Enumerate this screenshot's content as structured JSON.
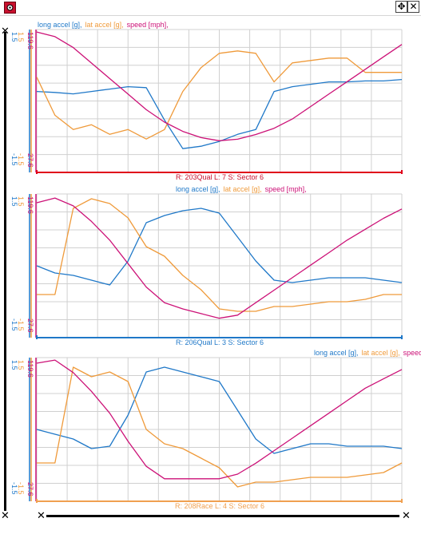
{
  "colors": {
    "long_accel": "#1f78c8",
    "lat_accel": "#ef9a3a",
    "speed": "#cc1177",
    "grid": "#d0d0d0",
    "marker_red": "#e0001a",
    "marker_blue": "#1f78c8",
    "marker_orange": "#f0a050"
  },
  "icons": {
    "app": "gear-icon",
    "move": "move-icon",
    "close": "close-icon"
  },
  "panels": [
    {
      "legend": {
        "long": "long accel [g],",
        "lat": "lat accel [g],",
        "speed": "speed [mph],"
      },
      "run_label": "R: 203Qual  L: 7  S: Sector 6",
      "run_color": "#e0001a",
      "axis_blue_top": "1.5",
      "axis_blue_bot": "-1.5",
      "axis_orange_top": "1.5",
      "axis_orange_bot": "-1.5",
      "axis_speed_top": "119.6",
      "axis_speed_bot": "27.6"
    },
    {
      "legend": {
        "long": "long accel [g],",
        "lat": "lat accel [g],",
        "speed": "speed [mph],"
      },
      "run_label": "R: 206Qual  L: 3  S: Sector 6",
      "run_color": "#1f78c8",
      "axis_blue_top": "1.5",
      "axis_blue_bot": "-1.5",
      "axis_orange_top": "1.5",
      "axis_orange_bot": "-1.5",
      "axis_speed_top": "119.6",
      "axis_speed_bot": "27.6"
    },
    {
      "legend": {
        "long": "long accel [g],",
        "lat": "lat accel [g],",
        "speed": "speed"
      },
      "run_label": "R: 208Race  L: 4  S: Sector 6",
      "run_color": "#f0a050",
      "axis_blue_top": "1.5",
      "axis_blue_bot": "-1.5",
      "axis_orange_top": "1.5",
      "axis_orange_bot": "-1.5",
      "axis_speed_top": "119.6",
      "axis_speed_bot": "27.6"
    }
  ],
  "chart_data": [
    {
      "type": "line",
      "x": [
        0,
        0.05,
        0.1,
        0.15,
        0.2,
        0.25,
        0.3,
        0.35,
        0.4,
        0.45,
        0.5,
        0.55,
        0.6,
        0.65,
        0.7,
        0.75,
        0.8,
        0.85,
        0.9,
        0.95,
        1.0
      ],
      "series": [
        {
          "name": "long accel [g]",
          "values": [
            0.2,
            0.18,
            0.15,
            0.2,
            0.25,
            0.3,
            0.28,
            -0.4,
            -1.0,
            -0.95,
            -0.85,
            -0.7,
            -0.6,
            0.2,
            0.3,
            0.35,
            0.4,
            0.4,
            0.42,
            0.42,
            0.45
          ]
        },
        {
          "name": "lat accel [g]",
          "values": [
            0.5,
            -0.3,
            -0.6,
            -0.5,
            -0.7,
            -0.6,
            -0.8,
            -0.6,
            0.2,
            0.7,
            1.0,
            1.05,
            1.0,
            0.4,
            0.8,
            0.85,
            0.9,
            0.9,
            0.6,
            0.6,
            0.6
          ]
        },
        {
          "name": "speed [mph]",
          "values": [
            118,
            115,
            108,
            98,
            88,
            78,
            68,
            60,
            54,
            50,
            48,
            49,
            52,
            56,
            62,
            70,
            78,
            86,
            94,
            102,
            110
          ]
        }
      ]
    },
    {
      "type": "line",
      "x": [
        0,
        0.05,
        0.1,
        0.15,
        0.2,
        0.25,
        0.3,
        0.35,
        0.4,
        0.45,
        0.5,
        0.55,
        0.6,
        0.65,
        0.7,
        0.75,
        0.8,
        0.85,
        0.9,
        0.95,
        1.0
      ],
      "series": [
        {
          "name": "long accel [g]",
          "values": [
            0.0,
            -0.15,
            -0.2,
            -0.3,
            -0.4,
            0.1,
            0.9,
            1.05,
            1.15,
            1.2,
            1.1,
            0.6,
            0.1,
            -0.3,
            -0.35,
            -0.3,
            -0.25,
            -0.25,
            -0.25,
            -0.3,
            -0.35
          ]
        },
        {
          "name": "lat accel [g]",
          "values": [
            -0.6,
            -0.6,
            1.2,
            1.4,
            1.3,
            1.0,
            0.4,
            0.2,
            -0.2,
            -0.5,
            -0.9,
            -0.95,
            -0.95,
            -0.85,
            -0.85,
            -0.8,
            -0.75,
            -0.75,
            -0.7,
            -0.6,
            -0.6
          ]
        },
        {
          "name": "speed [mph]",
          "values": [
            114,
            117,
            112,
            102,
            90,
            75,
            60,
            50,
            46,
            43,
            40,
            42,
            50,
            58,
            66,
            74,
            82,
            90,
            97,
            104,
            110
          ]
        }
      ]
    },
    {
      "type": "line",
      "x": [
        0,
        0.05,
        0.1,
        0.15,
        0.2,
        0.25,
        0.3,
        0.35,
        0.4,
        0.45,
        0.5,
        0.55,
        0.6,
        0.65,
        0.7,
        0.75,
        0.8,
        0.85,
        0.9,
        0.95,
        1.0
      ],
      "series": [
        {
          "name": "long accel [g]",
          "values": [
            0.0,
            -0.1,
            -0.2,
            -0.4,
            -0.35,
            0.3,
            1.2,
            1.3,
            1.2,
            1.1,
            1.0,
            0.4,
            -0.2,
            -0.5,
            -0.4,
            -0.3,
            -0.3,
            -0.35,
            -0.35,
            -0.35,
            -0.4
          ]
        },
        {
          "name": "lat accel [g]",
          "values": [
            -0.7,
            -0.7,
            1.3,
            1.1,
            1.2,
            1.0,
            0.0,
            -0.3,
            -0.4,
            -0.6,
            -0.8,
            -1.2,
            -1.1,
            -1.1,
            -1.05,
            -1.0,
            -1.0,
            -1.0,
            -0.95,
            -0.9,
            -0.7
          ]
        },
        {
          "name": "speed",
          "values": [
            116,
            118,
            110,
            98,
            84,
            66,
            50,
            42,
            42,
            42,
            42,
            45,
            52,
            60,
            68,
            76,
            84,
            92,
            100,
            106,
            112
          ]
        }
      ]
    }
  ]
}
